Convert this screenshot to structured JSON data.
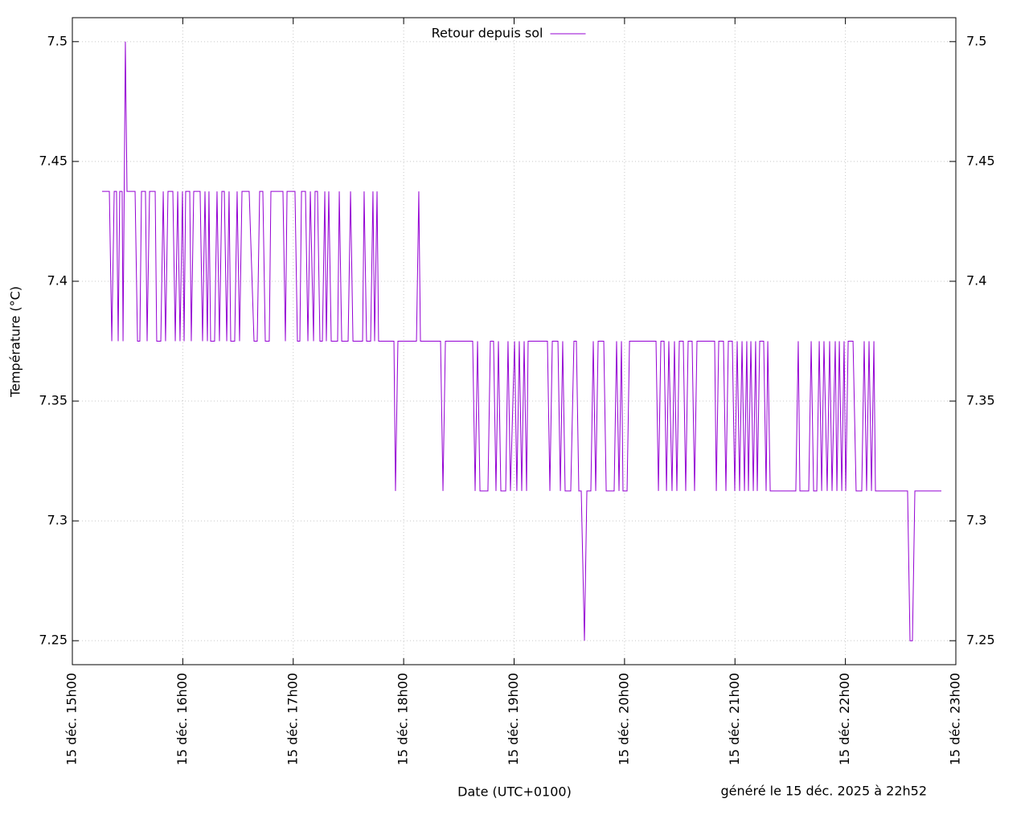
{
  "chart_data": {
    "type": "line",
    "x_label": "Date (UTC+0100)",
    "y_label": "Température (°C)",
    "footnote": "généré le 15 déc. 2025 à 22h52",
    "legend": "top center",
    "grid": true,
    "xlim": [
      15,
      23
    ],
    "xticks": [
      {
        "value": 15,
        "label": "15 déc. 15h00"
      },
      {
        "value": 16,
        "label": "15 déc. 16h00"
      },
      {
        "value": 17,
        "label": "15 déc. 17h00"
      },
      {
        "value": 18,
        "label": "15 déc. 18h00"
      },
      {
        "value": 19,
        "label": "15 déc. 19h00"
      },
      {
        "value": 20,
        "label": "15 déc. 20h00"
      },
      {
        "value": 21,
        "label": "15 déc. 21h00"
      },
      {
        "value": 22,
        "label": "15 déc. 22h00"
      },
      {
        "value": 23,
        "label": "15 déc. 23h00"
      }
    ],
    "ylim": [
      7.24,
      7.51
    ],
    "yticks": [
      7.25,
      7.3,
      7.35,
      7.4,
      7.45,
      7.5
    ],
    "x": [
      15.269,
      15.335,
      15.357,
      15.379,
      15.4,
      15.415,
      15.429,
      15.451,
      15.459,
      15.48,
      15.495,
      15.568,
      15.59,
      15.611,
      15.626,
      15.662,
      15.677,
      15.699,
      15.75,
      15.764,
      15.801,
      15.823,
      15.844,
      15.866,
      15.91,
      15.932,
      15.954,
      15.975,
      15.997,
      16.012,
      16.026,
      16.063,
      16.077,
      16.099,
      16.157,
      16.179,
      16.201,
      16.223,
      16.237,
      16.252,
      16.288,
      16.31,
      16.332,
      16.354,
      16.376,
      16.398,
      16.419,
      16.434,
      16.47,
      16.492,
      16.514,
      16.536,
      16.58,
      16.601,
      16.645,
      16.674,
      16.696,
      16.725,
      16.747,
      16.783,
      16.798,
      16.907,
      16.929,
      16.944,
      17.016,
      17.038,
      17.06,
      17.075,
      17.111,
      17.133,
      17.155,
      17.184,
      17.198,
      17.22,
      17.242,
      17.264,
      17.286,
      17.3,
      17.322,
      17.344,
      17.402,
      17.417,
      17.439,
      17.497,
      17.519,
      17.541,
      17.628,
      17.642,
      17.664,
      17.701,
      17.722,
      17.737,
      17.759,
      17.773,
      17.912,
      17.926,
      17.948,
      18.116,
      18.137,
      18.152,
      18.334,
      18.356,
      18.378,
      18.625,
      18.647,
      18.669,
      18.691,
      18.763,
      18.785,
      18.814,
      18.836,
      18.858,
      18.88,
      18.924,
      18.945,
      18.967,
      19.004,
      19.025,
      19.047,
      19.069,
      19.091,
      19.113,
      19.127,
      19.156,
      19.302,
      19.324,
      19.346,
      19.397,
      19.419,
      19.44,
      19.462,
      19.513,
      19.542,
      19.564,
      19.586,
      19.608,
      19.637,
      19.659,
      19.695,
      19.717,
      19.739,
      19.761,
      19.812,
      19.834,
      19.906,
      19.928,
      19.95,
      19.972,
      19.986,
      20.023,
      20.045,
      20.285,
      20.307,
      20.329,
      20.358,
      20.38,
      20.401,
      20.43,
      20.452,
      20.474,
      20.496,
      20.532,
      20.554,
      20.576,
      20.612,
      20.634,
      20.656,
      20.678,
      20.816,
      20.831,
      20.853,
      20.896,
      20.918,
      20.94,
      20.976,
      20.998,
      21.02,
      21.042,
      21.064,
      21.086,
      21.107,
      21.122,
      21.144,
      21.166,
      21.187,
      21.202,
      21.224,
      21.26,
      21.282,
      21.297,
      21.319,
      21.551,
      21.573,
      21.588,
      21.668,
      21.69,
      21.712,
      21.741,
      21.763,
      21.785,
      21.806,
      21.835,
      21.857,
      21.879,
      21.908,
      21.923,
      21.945,
      21.967,
      21.988,
      22.003,
      22.025,
      22.069,
      22.097,
      22.148,
      22.17,
      22.192,
      22.214,
      22.236,
      22.258,
      22.272,
      22.563,
      22.585,
      22.607,
      22.629,
      22.869
    ],
    "series": [
      {
        "name": "Retour depuis sol",
        "color": "#9400d3",
        "values": [
          7.4375,
          7.4375,
          7.375,
          7.4375,
          7.4375,
          7.375,
          7.4375,
          7.4375,
          7.375,
          7.5,
          7.4375,
          7.4375,
          7.375,
          7.375,
          7.4375,
          7.4375,
          7.375,
          7.4375,
          7.4375,
          7.375,
          7.375,
          7.4375,
          7.375,
          7.4375,
          7.4375,
          7.375,
          7.4375,
          7.375,
          7.4375,
          7.375,
          7.4375,
          7.4375,
          7.375,
          7.4375,
          7.4375,
          7.375,
          7.4375,
          7.375,
          7.4375,
          7.375,
          7.375,
          7.4375,
          7.375,
          7.4375,
          7.4375,
          7.375,
          7.4375,
          7.375,
          7.375,
          7.4375,
          7.375,
          7.4375,
          7.4375,
          7.4375,
          7.375,
          7.375,
          7.4375,
          7.4375,
          7.375,
          7.375,
          7.4375,
          7.4375,
          7.375,
          7.4375,
          7.4375,
          7.375,
          7.375,
          7.4375,
          7.4375,
          7.375,
          7.4375,
          7.375,
          7.4375,
          7.4375,
          7.375,
          7.375,
          7.4375,
          7.375,
          7.4375,
          7.375,
          7.375,
          7.4375,
          7.375,
          7.375,
          7.4375,
          7.375,
          7.375,
          7.4375,
          7.375,
          7.375,
          7.4375,
          7.375,
          7.4375,
          7.375,
          7.375,
          7.3125,
          7.375,
          7.375,
          7.4375,
          7.375,
          7.375,
          7.3125,
          7.375,
          7.375,
          7.3125,
          7.375,
          7.3125,
          7.3125,
          7.375,
          7.375,
          7.3125,
          7.375,
          7.3125,
          7.3125,
          7.375,
          7.3125,
          7.375,
          7.3125,
          7.375,
          7.3125,
          7.375,
          7.3125,
          7.375,
          7.375,
          7.375,
          7.3125,
          7.375,
          7.375,
          7.3125,
          7.375,
          7.3125,
          7.3125,
          7.375,
          7.375,
          7.3125,
          7.3125,
          7.25,
          7.3125,
          7.3125,
          7.375,
          7.3125,
          7.375,
          7.375,
          7.3125,
          7.3125,
          7.375,
          7.3125,
          7.375,
          7.3125,
          7.3125,
          7.375,
          7.375,
          7.3125,
          7.375,
          7.375,
          7.3125,
          7.375,
          7.3125,
          7.375,
          7.3125,
          7.375,
          7.375,
          7.3125,
          7.375,
          7.375,
          7.3125,
          7.375,
          7.375,
          7.375,
          7.3125,
          7.375,
          7.375,
          7.3125,
          7.375,
          7.375,
          7.3125,
          7.375,
          7.3125,
          7.375,
          7.3125,
          7.375,
          7.3125,
          7.375,
          7.3125,
          7.375,
          7.3125,
          7.375,
          7.375,
          7.3125,
          7.375,
          7.3125,
          7.3125,
          7.375,
          7.3125,
          7.3125,
          7.375,
          7.3125,
          7.3125,
          7.375,
          7.3125,
          7.375,
          7.3125,
          7.375,
          7.3125,
          7.375,
          7.3125,
          7.375,
          7.3125,
          7.375,
          7.3125,
          7.375,
          7.375,
          7.3125,
          7.3125,
          7.375,
          7.3125,
          7.375,
          7.3125,
          7.375,
          7.3125,
          7.3125,
          7.25,
          7.25,
          7.3125,
          7.3125
        ]
      }
    ]
  }
}
